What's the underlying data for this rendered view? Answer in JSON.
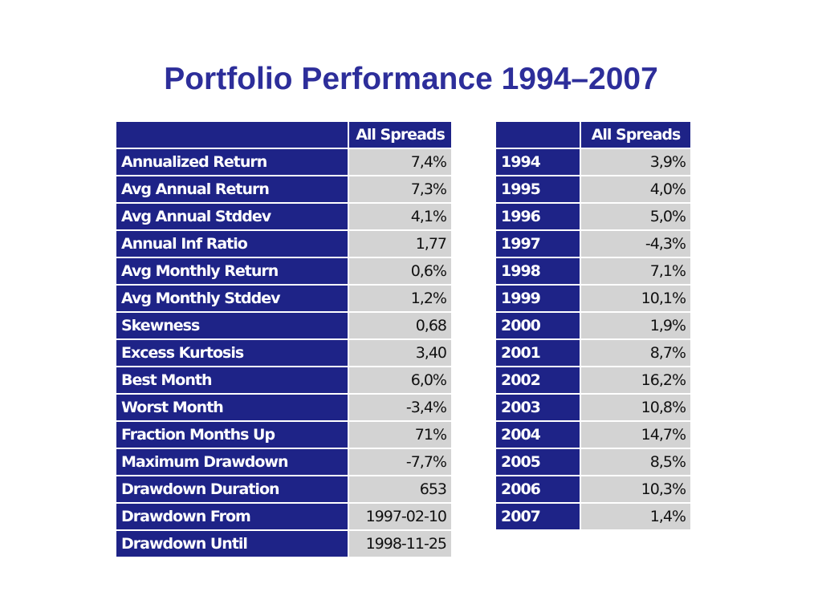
{
  "title": "Portfolio Performance 1994–2007",
  "stats_table": {
    "column_header": "All Spreads",
    "rows": [
      {
        "label": "Annualized Return",
        "value": "7,4%"
      },
      {
        "label": "Avg Annual Return",
        "value": "7,3%"
      },
      {
        "label": "Avg Annual Stddev",
        "value": "4,1%"
      },
      {
        "label": "Annual Inf Ratio",
        "value": "1,77"
      },
      {
        "label": "Avg Monthly Return",
        "value": "0,6%"
      },
      {
        "label": "Avg Monthly Stddev",
        "value": "1,2%"
      },
      {
        "label": "Skewness",
        "value": "0,68"
      },
      {
        "label": "Excess Kurtosis",
        "value": "3,40"
      },
      {
        "label": "Best Month",
        "value": "6,0%"
      },
      {
        "label": "Worst Month",
        "value": "-3,4%"
      },
      {
        "label": "Fraction Months Up",
        "value": "71%"
      },
      {
        "label": "Maximum Drawdown",
        "value": "-7,7%"
      },
      {
        "label": "Drawdown Duration",
        "value": "653"
      },
      {
        "label": "Drawdown From",
        "value": "1997-02-10"
      },
      {
        "label": "Drawdown Until",
        "value": "1998-11-25"
      }
    ]
  },
  "yearly_table": {
    "column_header": "All Spreads",
    "rows": [
      {
        "label": "1994",
        "value": "3,9%"
      },
      {
        "label": "1995",
        "value": "4,0%"
      },
      {
        "label": "1996",
        "value": "5,0%"
      },
      {
        "label": "1997",
        "value": "-4,3%"
      },
      {
        "label": "1998",
        "value": "7,1%"
      },
      {
        "label": "1999",
        "value": "10,1%"
      },
      {
        "label": "2000",
        "value": "1,9%"
      },
      {
        "label": "2001",
        "value": "8,7%"
      },
      {
        "label": "2002",
        "value": "16,2%"
      },
      {
        "label": "2003",
        "value": "10,8%"
      },
      {
        "label": "2004",
        "value": "14,7%"
      },
      {
        "label": "2005",
        "value": "8,5%"
      },
      {
        "label": "2006",
        "value": "10,3%"
      },
      {
        "label": "2007",
        "value": "1,4%"
      }
    ]
  },
  "colors": {
    "title": "#2d2e9a",
    "header_fill": "#1e2387",
    "value_fill": "#d3d3d3"
  }
}
